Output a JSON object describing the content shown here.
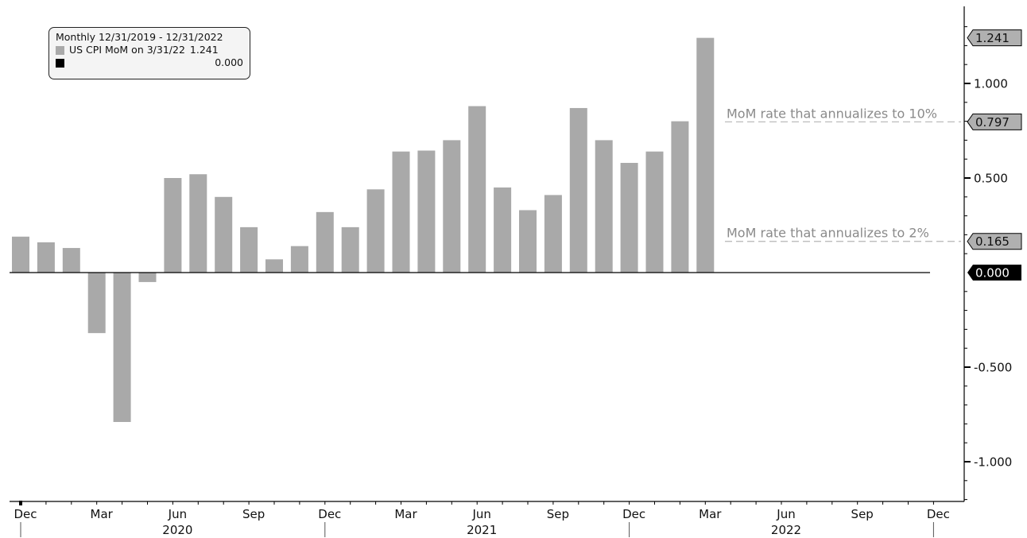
{
  "colors": {
    "bar": "#a9a9a9",
    "axis": "#000000",
    "refline": "#b5b5b5",
    "reftext": "#8a8a8a",
    "zero_tag": "#000000",
    "tag_fill": "#b0b0b0"
  },
  "legend": {
    "header": "Monthly 12/31/2019 - 12/31/2022",
    "series_label": "US CPI MoM on 3/31/22",
    "series_value": "1.241",
    "zero_label": "",
    "zero_value": "0.000"
  },
  "chart_data": {
    "type": "bar",
    "x": [
      "2019-12",
      "2020-01",
      "2020-02",
      "2020-03",
      "2020-04",
      "2020-05",
      "2020-06",
      "2020-07",
      "2020-08",
      "2020-09",
      "2020-10",
      "2020-11",
      "2020-12",
      "2021-01",
      "2021-02",
      "2021-03",
      "2021-04",
      "2021-05",
      "2021-06",
      "2021-07",
      "2021-08",
      "2021-09",
      "2021-10",
      "2021-11",
      "2021-12",
      "2022-01",
      "2022-02",
      "2022-03"
    ],
    "series": [
      {
        "values": [
          0.19,
          0.16,
          0.13,
          -0.32,
          -0.79,
          -0.05,
          0.5,
          0.52,
          0.4,
          0.24,
          0.07,
          0.14,
          0.32,
          0.24,
          0.44,
          0.64,
          0.645,
          0.7,
          0.88,
          0.45,
          0.33,
          0.41,
          0.87,
          0.7,
          0.58,
          0.64,
          0.8,
          1.241
        ]
      }
    ],
    "ylim": [
      -1.2,
      1.4
    ],
    "y_ticks": [
      {
        "value": 1.0,
        "label": "1.000"
      },
      {
        "value": 0.5,
        "label": "0.500"
      },
      {
        "value": -0.5,
        "label": "-0.500"
      },
      {
        "value": -1.0,
        "label": "-1.000"
      }
    ],
    "x_month_ticks": [
      {
        "month": "2019-12",
        "label": "Dec"
      },
      {
        "month": "2020-03",
        "label": "Mar"
      },
      {
        "month": "2020-06",
        "label": "Jun"
      },
      {
        "month": "2020-09",
        "label": "Sep"
      },
      {
        "month": "2020-12",
        "label": "Dec"
      },
      {
        "month": "2021-03",
        "label": "Mar"
      },
      {
        "month": "2021-06",
        "label": "Jun"
      },
      {
        "month": "2021-09",
        "label": "Sep"
      },
      {
        "month": "2021-12",
        "label": "Dec"
      },
      {
        "month": "2022-03",
        "label": "Mar"
      },
      {
        "month": "2022-06",
        "label": "Jun"
      },
      {
        "month": "2022-09",
        "label": "Sep"
      },
      {
        "month": "2022-12",
        "label": "Dec"
      }
    ],
    "x_years": [
      {
        "month": "2020-06",
        "label": "2020"
      },
      {
        "month": "2021-06",
        "label": "2021"
      },
      {
        "month": "2022-06",
        "label": "2022"
      }
    ],
    "reference_lines": [
      {
        "value": 0.797,
        "text": "MoM rate that annualizes to 10%"
      },
      {
        "value": 0.165,
        "text": "MoM rate that annualizes to 2%"
      }
    ],
    "value_tags": [
      {
        "value": 1.241,
        "label": "1.241",
        "style": "gray"
      },
      {
        "value": 0.797,
        "label": "0.797",
        "style": "gray"
      },
      {
        "value": 0.165,
        "label": "0.165",
        "style": "gray"
      },
      {
        "value": 0.0,
        "label": "0.000",
        "style": "black"
      }
    ]
  }
}
